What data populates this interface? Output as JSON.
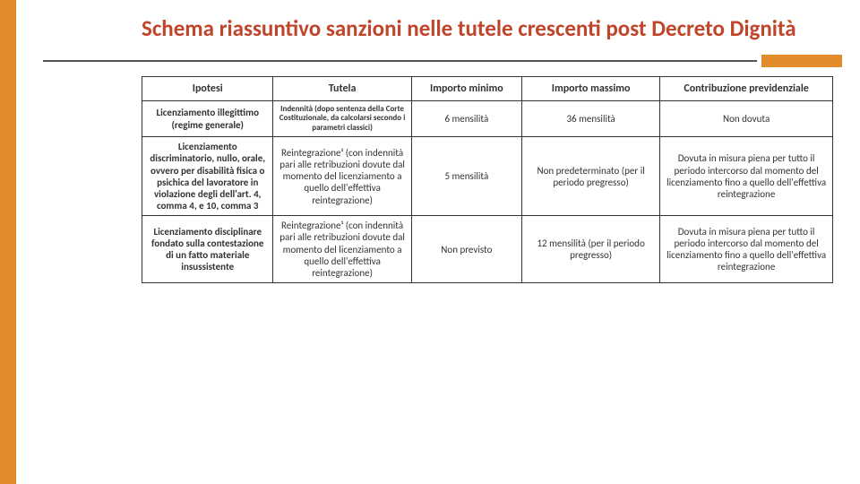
{
  "colors": {
    "accent": "#e28b2d",
    "title": "#c0452a",
    "border": "#333333",
    "text": "#333333",
    "background": "#ffffff"
  },
  "title": "Schema riassuntivo sanzioni nelle tutele crescenti post Decreto Dignità",
  "table": {
    "headers": [
      "Ipotesi",
      "Tutela",
      "Importo minimo",
      "Importo massimo",
      "Contribuzione previdenziale"
    ],
    "rows": [
      {
        "ipotesi": "Licenziamento illegittimo (regime generale)",
        "tutela": "Indennità (dopo sentenza della Corte Costituzionale, da calcolarsi secondo i parametri classici)",
        "tutela_small": true,
        "minimo": "6 mensilità",
        "massimo": "36 mensilità",
        "contribuzione": "Non dovuta"
      },
      {
        "ipotesi": "Licenziamento discriminatorio, nullo, orale, ovvero per disabilità fisica o psichica del lavoratore in violazione degli dell'art. 4, comma 4, e 10, comma 3",
        "tutela": "Reintegrazione¹ (con indennità pari alle retribuzioni dovute dal momento del licenziamento a quello dell'effettiva reintegrazione)",
        "tutela_small": false,
        "minimo": "5 mensilità",
        "massimo": "Non predeterminato (per il periodo pregresso)",
        "contribuzione": "Dovuta in misura piena per tutto il periodo intercorso dal momento del licenziamento fino a quello dell'effettiva reintegrazione"
      },
      {
        "ipotesi": "Licenziamento disciplinare fondato sulla contestazione di un fatto materiale insussistente",
        "tutela": "Reintegrazione¹ (con indennità pari alle retribuzioni dovute dal momento del licenziamento a quello dell'effettiva reintegrazione)",
        "tutela_small": false,
        "minimo": "Non previsto",
        "massimo": "12 mensilità (per il periodo pregresso)",
        "contribuzione": "Dovuta in misura piena per tutto il periodo intercorso dal momento del licenziamento fino a quello dell'effettiva reintegrazione"
      }
    ]
  }
}
